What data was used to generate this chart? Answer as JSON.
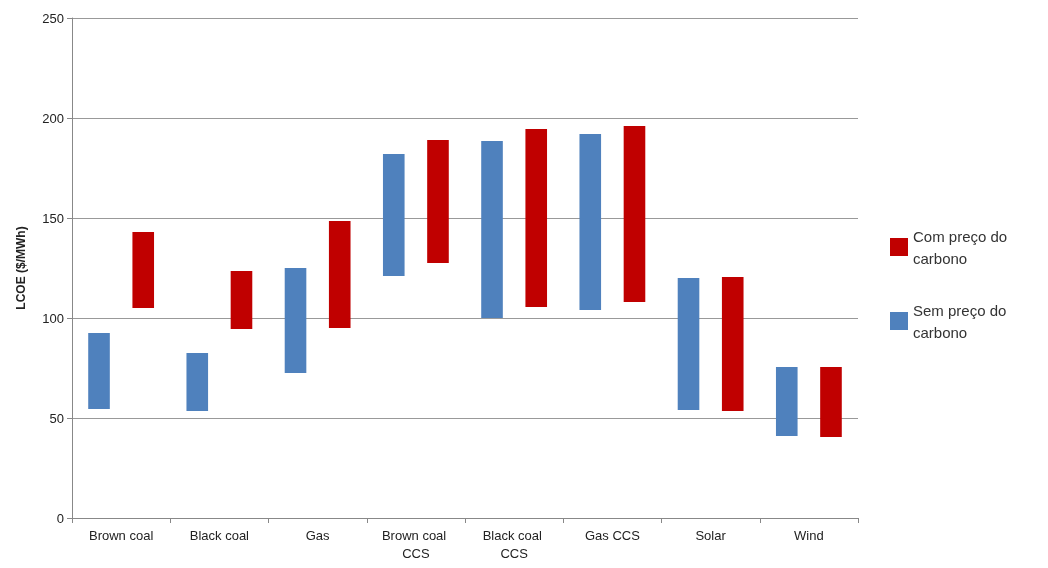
{
  "chart_data": {
    "type": "bar",
    "ylabel": "LCOE ($/MWh)",
    "categories": [
      "Brown coal",
      "Black coal",
      "Gas",
      "Brown coal CCS",
      "Black coal CCS",
      "Gas CCS",
      "Solar",
      "Wind"
    ],
    "series": [
      {
        "name": "Sem preço do carbono",
        "color": "#4f81bd",
        "base": [
          54.5,
          53.5,
          72.5,
          121,
          100,
          104,
          54,
          41
        ],
        "values": [
          38,
          29,
          52.5,
          61,
          88.5,
          88,
          66,
          34.5
        ]
      },
      {
        "name": "Com preço do carbono",
        "color": "#c00000",
        "base": [
          105,
          94.5,
          95,
          127.5,
          105.5,
          108,
          53.5,
          40.5
        ],
        "values": [
          38,
          29,
          53.5,
          61.5,
          89,
          88,
          67,
          35
        ]
      }
    ],
    "ylim": [
      0,
      250
    ],
    "yticks": [
      0,
      50,
      100,
      150,
      200,
      250
    ],
    "grid": "y",
    "legend": "right"
  }
}
